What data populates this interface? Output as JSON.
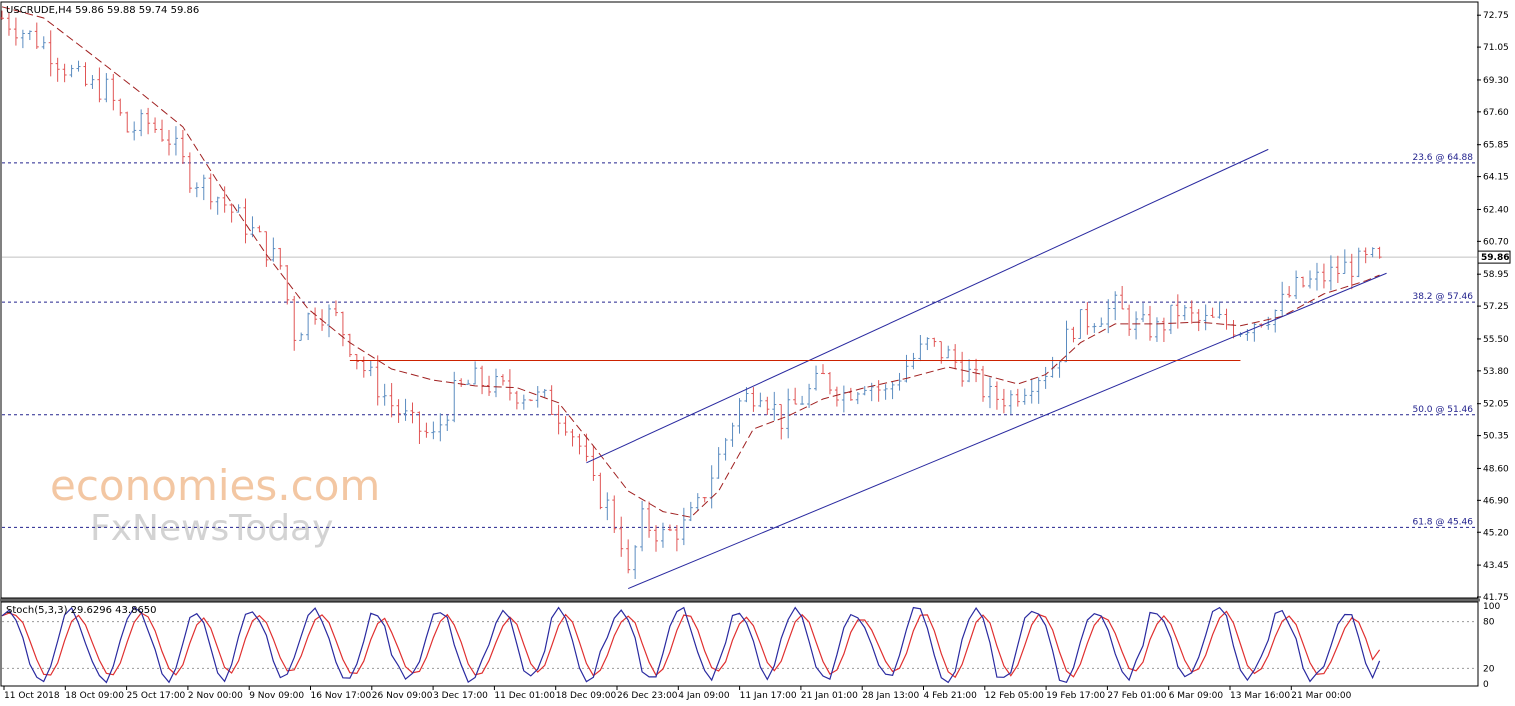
{
  "header": {
    "symbol_line": "USCRUDE,H4  59.86 59.88 59.74 59.86",
    "stoch_line": "Stoch(5,3,3) 29.6296 43.8650"
  },
  "watermark": {
    "line1": "economies.com",
    "line2": "FxNewsToday"
  },
  "colors": {
    "bull": "#5b8cc0",
    "bear": "#e05555",
    "ma": "#a02020",
    "fib": "#23238e",
    "channel": "#2a2aa0",
    "resistance": "#cc2200",
    "stoch_main": "#2a2aa0",
    "stoch_signal": "#e03030",
    "price_tag_bg": "#ffffff"
  },
  "chart_data": {
    "type": "line",
    "title": "USCRUDE,H4",
    "ohlc_last": {
      "open": 59.86,
      "high": 59.88,
      "low": 59.74,
      "close": 59.86
    },
    "current_price": 59.86,
    "current_price_label": "59.86",
    "price_range": [
      41.75,
      73.4
    ],
    "y_ticks": [
      72.75,
      71.05,
      69.3,
      67.6,
      65.85,
      64.15,
      62.4,
      60.7,
      58.95,
      57.25,
      55.5,
      53.8,
      52.05,
      50.35,
      48.6,
      46.9,
      45.2,
      43.45,
      41.75
    ],
    "y_tick_labels": [
      "72.75",
      "71.05",
      "69.30",
      "67.60",
      "65.85",
      "64.15",
      "62.40",
      "60.70",
      "58.95",
      "57.25",
      "55.50",
      "53.80",
      "52.05",
      "50.35",
      "48.60",
      "46.90",
      "45.20",
      "43.45",
      "41.75"
    ],
    "x_labels": [
      "11 Oct 2018",
      "18 Oct 09:00",
      "25 Oct 17:00",
      "2 Nov 00:00",
      "9 Nov 09:00",
      "16 Nov 17:00",
      "26 Nov 09:00",
      "3 Dec 17:00",
      "11 Dec 01:00",
      "18 Dec 09:00",
      "26 Dec 23:00",
      "4 Jan 09:00",
      "11 Jan 17:00",
      "21 Jan 01:00",
      "28 Jan 13:00",
      "4 Feb 21:00",
      "12 Feb 05:00",
      "19 Feb 17:00",
      "27 Feb 01:00",
      "6 Mar 09:00",
      "13 Mar 16:00",
      "21 Mar 00:00"
    ],
    "x_range": [
      0,
      212
    ],
    "bar_count": 212,
    "price_path": [
      [
        0,
        72.6
      ],
      [
        6,
        71.2
      ],
      [
        9,
        70.0
      ],
      [
        12,
        69.0
      ],
      [
        15,
        68.8
      ],
      [
        18,
        66.6
      ],
      [
        21,
        67.0
      ],
      [
        24,
        66.2
      ],
      [
        27,
        64.2
      ],
      [
        30,
        63.5
      ],
      [
        33,
        62.3
      ],
      [
        36,
        61.2
      ],
      [
        40,
        59.4
      ],
      [
        42,
        55.8
      ],
      [
        45,
        57.1
      ],
      [
        48,
        56.6
      ],
      [
        52,
        53.9
      ],
      [
        56,
        52.0
      ],
      [
        59,
        50.9
      ],
      [
        62,
        50.2
      ],
      [
        65,
        52.6
      ],
      [
        68,
        53.3
      ],
      [
        72,
        52.8
      ],
      [
        75,
        52.6
      ],
      [
        78,
        52.2
      ],
      [
        81,
        51.2
      ],
      [
        83,
        49.8
      ],
      [
        85,
        47.6
      ],
      [
        87,
        46.6
      ],
      [
        89,
        44.8
      ],
      [
        90,
        42.8
      ],
      [
        92,
        45.8
      ],
      [
        95,
        45.0
      ],
      [
        98,
        45.5
      ],
      [
        100,
        46.5
      ],
      [
        103,
        49.2
      ],
      [
        106,
        52.1
      ],
      [
        109,
        52.9
      ],
      [
        112,
        51.2
      ],
      [
        115,
        52.3
      ],
      [
        118,
        53.4
      ],
      [
        121,
        52.6
      ],
      [
        124,
        53.3
      ],
      [
        127,
        52.6
      ],
      [
        130,
        54.1
      ],
      [
        133,
        55.2
      ],
      [
        136,
        54.6
      ],
      [
        139,
        53.6
      ],
      [
        142,
        52.4
      ],
      [
        145,
        52.4
      ],
      [
        148,
        53.4
      ],
      [
        151,
        54.1
      ],
      [
        154,
        56.2
      ],
      [
        157,
        56.7
      ],
      [
        160,
        57.2
      ],
      [
        163,
        56.2
      ],
      [
        166,
        56.0
      ],
      [
        169,
        57.0
      ],
      [
        172,
        56.4
      ],
      [
        175,
        56.4
      ],
      [
        178,
        56.1
      ],
      [
        180,
        56.5
      ],
      [
        183,
        57.0
      ],
      [
        186,
        58.2
      ],
      [
        190,
        58.8
      ],
      [
        193,
        59.3
      ],
      [
        196,
        59.6
      ],
      [
        198,
        59.86
      ]
    ],
    "moving_average": [
      [
        0,
        73.2
      ],
      [
        6,
        72.6
      ],
      [
        12,
        70.9
      ],
      [
        20,
        68.6
      ],
      [
        26,
        66.8
      ],
      [
        32,
        63.3
      ],
      [
        38,
        60.0
      ],
      [
        44,
        57.1
      ],
      [
        50,
        55.3
      ],
      [
        56,
        53.9
      ],
      [
        62,
        53.3
      ],
      [
        68,
        53.0
      ],
      [
        74,
        52.9
      ],
      [
        80,
        52.1
      ],
      [
        85,
        49.8
      ],
      [
        90,
        47.4
      ],
      [
        95,
        46.3
      ],
      [
        99,
        46.0
      ],
      [
        103,
        47.4
      ],
      [
        108,
        50.7
      ],
      [
        113,
        51.4
      ],
      [
        118,
        52.3
      ],
      [
        124,
        52.9
      ],
      [
        130,
        53.4
      ],
      [
        136,
        54.0
      ],
      [
        141,
        53.6
      ],
      [
        146,
        53.1
      ],
      [
        150,
        53.6
      ],
      [
        155,
        55.3
      ],
      [
        160,
        56.3
      ],
      [
        166,
        56.3
      ],
      [
        172,
        56.4
      ],
      [
        178,
        56.2
      ],
      [
        184,
        56.7
      ],
      [
        190,
        57.9
      ],
      [
        196,
        58.6
      ],
      [
        198,
        58.9
      ]
    ],
    "fib_levels": [
      {
        "label": "23.6 @ 64.88",
        "value": 64.88
      },
      {
        "label": "38.2 @ 57.46",
        "value": 57.46
      },
      {
        "label": "50.0 @ 51.46",
        "value": 51.46
      },
      {
        "label": "61.8 @ 45.46",
        "value": 45.46
      }
    ],
    "channel_upper": [
      [
        84,
        48.9
      ],
      [
        182,
        65.6
      ]
    ],
    "channel_lower": [
      [
        90,
        42.2
      ],
      [
        199,
        59.0
      ]
    ],
    "resistance": [
      [
        50,
        54.35
      ],
      [
        178,
        54.35
      ]
    ],
    "stochastic": {
      "label": "Stoch(5,3,3)",
      "main_last": 29.6296,
      "signal_last": 43.865,
      "range": [
        0,
        100
      ],
      "levels": [
        20,
        80
      ],
      "tick_labels": [
        "100",
        "80",
        "20",
        "0"
      ]
    }
  }
}
